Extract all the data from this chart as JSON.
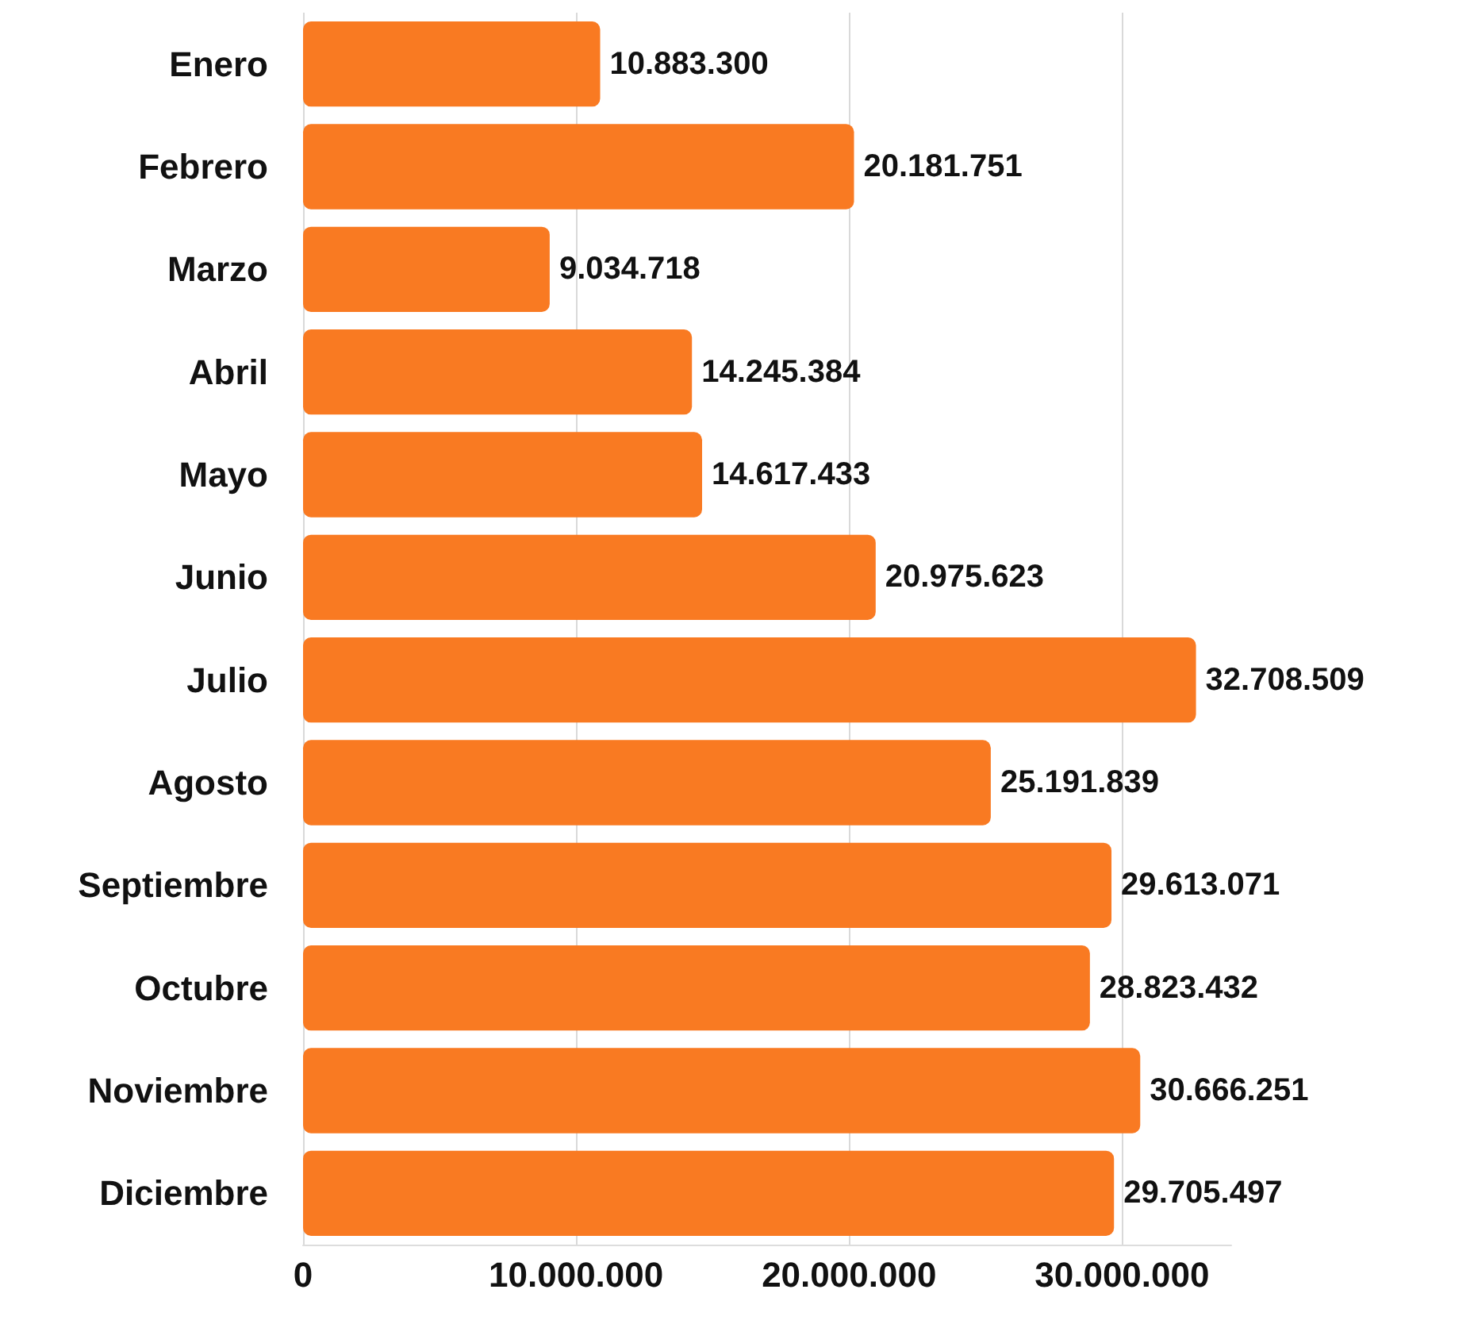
{
  "chart_data": {
    "type": "bar",
    "orientation": "horizontal",
    "categories": [
      "Enero",
      "Febrero",
      "Marzo",
      "Abril",
      "Mayo",
      "Junio",
      "Julio",
      "Agosto",
      "Septiembre",
      "Octubre",
      "Noviembre",
      "Diciembre"
    ],
    "values": [
      10883300,
      20181751,
      9034718,
      14245384,
      14617433,
      20975623,
      32708509,
      25191839,
      29613071,
      28823432,
      30666251,
      29705497
    ],
    "value_labels": [
      "10.883.300",
      "20.181.751",
      "9.034.718",
      "14.245.384",
      "14.617.433",
      "20.975.623",
      "32.708.509",
      "25.191.839",
      "29.613.071",
      "28.823.432",
      "30.666.251",
      "29.705.497"
    ],
    "color": "#f97a22",
    "xlim": [
      0,
      34000000
    ],
    "xticks": [
      {
        "value": 0,
        "label": "0"
      },
      {
        "value": 10000000,
        "label": "10.000.000"
      },
      {
        "value": 20000000,
        "label": "20.000.000"
      },
      {
        "value": 30000000,
        "label": "30.000.000"
      }
    ],
    "grid": "x"
  }
}
